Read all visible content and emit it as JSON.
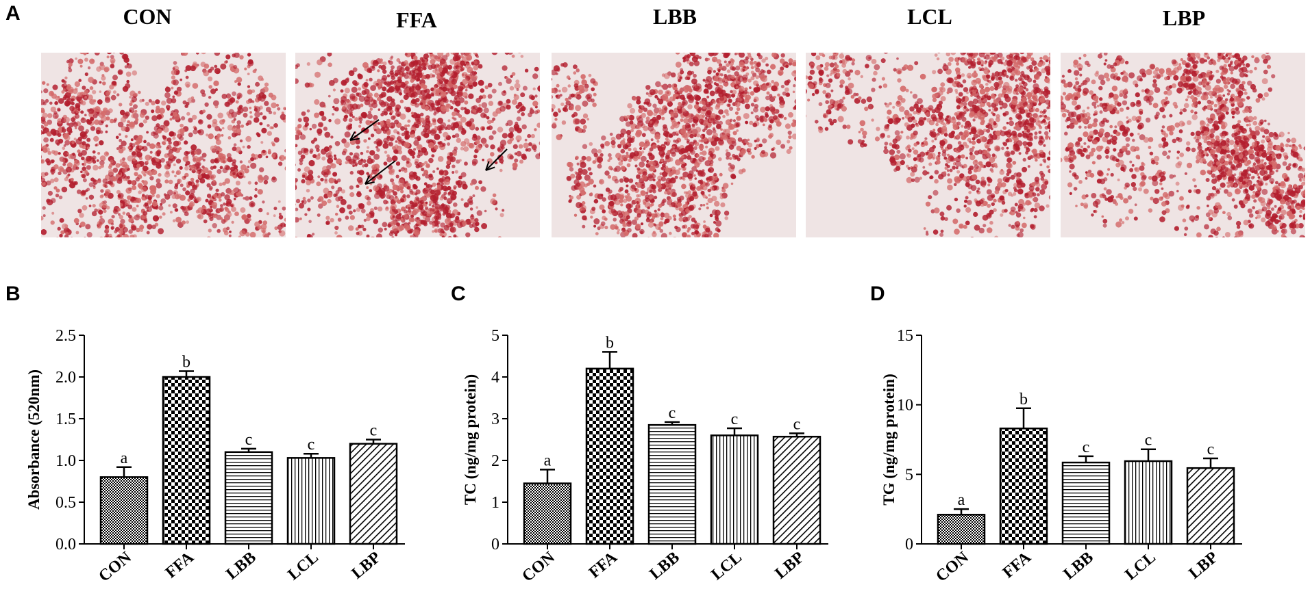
{
  "panel_labels": {
    "a": "A",
    "b": "B",
    "c": "C",
    "d": "D"
  },
  "micrographs": [
    {
      "label": "CON"
    },
    {
      "label": "FFA"
    },
    {
      "label": "LBB"
    },
    {
      "label": "LCL"
    },
    {
      "label": "LBP"
    }
  ],
  "colors": {
    "background": "#efe4e4",
    "stain_dark": "#b31e2e",
    "stain_light": "#d46a6a",
    "bar_stroke": "#000000"
  },
  "chart_data": [
    {
      "type": "bar",
      "panel": "B",
      "categories": [
        "CON",
        "FFA",
        "LBB",
        "LCL",
        "LBP"
      ],
      "values": [
        0.8,
        2.0,
        1.1,
        1.03,
        1.2
      ],
      "errors": [
        0.12,
        0.07,
        0.04,
        0.05,
        0.05
      ],
      "significance": [
        "a",
        "b",
        "c",
        "c",
        "c"
      ],
      "patterns": [
        "fine-check",
        "checker",
        "horizontal",
        "vertical",
        "diagonal"
      ],
      "ylabel": "Absorbance (520nm)",
      "ylim": [
        0,
        2.5
      ],
      "yticks": [
        "0.0",
        "0.5",
        "1.0",
        "1.5",
        "2.0",
        "2.5"
      ]
    },
    {
      "type": "bar",
      "panel": "C",
      "categories": [
        "CON",
        "FFA",
        "LBB",
        "LCL",
        "LBP"
      ],
      "values": [
        1.45,
        4.2,
        2.85,
        2.6,
        2.57
      ],
      "errors": [
        0.33,
        0.4,
        0.07,
        0.17,
        0.08
      ],
      "significance": [
        "a",
        "b",
        "c",
        "c",
        "c"
      ],
      "patterns": [
        "fine-check",
        "checker",
        "horizontal",
        "vertical",
        "diagonal"
      ],
      "ylabel": "TC (ng/mg protein)",
      "ylim": [
        0,
        5
      ],
      "yticks": [
        "0",
        "1",
        "2",
        "3",
        "4",
        "5"
      ]
    },
    {
      "type": "bar",
      "panel": "D",
      "categories": [
        "CON",
        "FFA",
        "LBB",
        "LCL",
        "LBP"
      ],
      "values": [
        2.1,
        8.3,
        5.85,
        5.95,
        5.45
      ],
      "errors": [
        0.4,
        1.45,
        0.45,
        0.85,
        0.7
      ],
      "significance": [
        "a",
        "b",
        "c",
        "c",
        "c"
      ],
      "patterns": [
        "fine-check",
        "checker",
        "horizontal",
        "vertical",
        "diagonal"
      ],
      "ylabel": "TG (ng/mg protein)",
      "ylim": [
        0,
        15
      ],
      "yticks": [
        "0",
        "5",
        "10",
        "15"
      ]
    }
  ]
}
